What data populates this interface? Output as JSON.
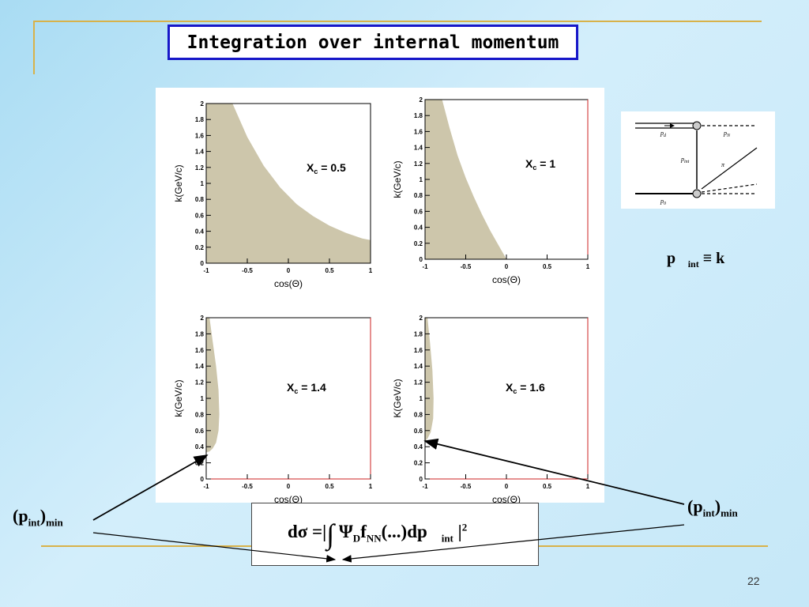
{
  "slide": {
    "title": "Integration over internal momentum",
    "page_number": "22",
    "formula": {
      "prefix": "dσ =|",
      "integral": "∫",
      "psi": "Ψ",
      "psi_sub": "D",
      "f": "f",
      "f_sub": "NN",
      "middle": "(...)d",
      "p": "p⃗",
      "p_sub": "int",
      "suffix": "|",
      "power": "2"
    },
    "pint_equation": {
      "p": "p⃗",
      "sub": "int",
      "rest": " ≡ k⃗"
    },
    "pmin_label": {
      "open": "(p",
      "sub": "int",
      "close": ")",
      "min": "min"
    },
    "diagram_labels": {
      "pd": "p",
      "pd_sub": "d",
      "pN": "p",
      "pN_sub": "N",
      "pint": "p",
      "pint_sub": "int",
      "pi": "π",
      "p0": "p",
      "p0_sub": "0"
    },
    "colors": {
      "fill": "#cdc6ab",
      "title_border": "#1717c8",
      "accent_line": "#d8b24a",
      "frame_right": "#cc2222"
    }
  },
  "chart_data": [
    {
      "type": "area",
      "annotation": "X",
      "annotation_sub": "c",
      "annotation_value": " = 0.5",
      "xlabel": "cos(Θ)",
      "ylabel": "k(GeV/c)",
      "xlim": [
        -1,
        1
      ],
      "ylim": [
        0,
        2
      ],
      "xticks": [
        "-1",
        "-0.5",
        "0",
        "0.5",
        "1"
      ],
      "yticks": [
        "0",
        "0.2",
        "0.4",
        "0.6",
        "0.8",
        "1",
        "1.2",
        "1.4",
        "1.6",
        "1.8",
        "2"
      ],
      "boundary": {
        "x": [
          -1,
          -0.68,
          -0.5,
          -0.3,
          -0.1,
          0.1,
          0.3,
          0.5,
          0.7,
          0.9,
          1
        ],
        "y": [
          2,
          2,
          1.58,
          1.22,
          0.95,
          0.74,
          0.59,
          0.47,
          0.38,
          0.31,
          0.29
        ]
      }
    },
    {
      "type": "area",
      "annotation": "X",
      "annotation_sub": "c",
      "annotation_value": " = 1",
      "xlabel": "cos(Θ)",
      "ylabel": "k(GeV/c)",
      "xlim": [
        -1,
        1
      ],
      "ylim": [
        0,
        2
      ],
      "xticks": [
        "-1",
        "-0.5",
        "0",
        "0.5",
        "1"
      ],
      "yticks": [
        "0",
        "0.2",
        "0.4",
        "0.6",
        "0.8",
        "1",
        "1.2",
        "1.4",
        "1.6",
        "1.8",
        "2"
      ],
      "boundary": {
        "x": [
          -1,
          -0.79,
          -0.7,
          -0.6,
          -0.5,
          -0.4,
          -0.3,
          -0.2,
          -0.1,
          -0.02,
          0
        ],
        "y": [
          2,
          2,
          1.65,
          1.3,
          1.02,
          0.78,
          0.56,
          0.36,
          0.18,
          0.04,
          0
        ]
      }
    },
    {
      "type": "area",
      "annotation": "X",
      "annotation_sub": "c",
      "annotation_value": " = 1.4",
      "xlabel": "cos(Θ)",
      "ylabel": "k(GeV/c)",
      "xlim": [
        -1,
        1
      ],
      "ylim": [
        0,
        2
      ],
      "xticks": [
        "-1",
        "-0.5",
        "0",
        "0.5",
        "1"
      ],
      "yticks": [
        "0",
        "0.2",
        "0.4",
        "0.6",
        "0.8",
        "1",
        "1.2",
        "1.4",
        "1.6",
        "1.8",
        "2"
      ],
      "boundary": {
        "x": [
          -1,
          -0.96,
          -0.92,
          -0.88,
          -0.85,
          -0.84,
          -0.85,
          -0.88,
          -0.92,
          -0.96,
          -1
        ],
        "y": [
          2,
          2,
          1.7,
          1.4,
          1.1,
          0.8,
          0.6,
          0.45,
          0.38,
          0.34,
          0.33
        ]
      }
    },
    {
      "type": "area",
      "annotation": "X",
      "annotation_sub": "c",
      "annotation_value": " = 1.6",
      "xlabel": "cos(Θ)",
      "ylabel": "K(GeV/c)",
      "xlim": [
        -1,
        1
      ],
      "ylim": [
        0,
        2
      ],
      "xticks": [
        "-1",
        "-0.5",
        "0",
        "0.5",
        "1"
      ],
      "yticks": [
        "0",
        "0.2",
        "0.4",
        "0.6",
        "0.8",
        "1",
        "1.2",
        "1.4",
        "1.6",
        "1.8",
        "2"
      ],
      "boundary": {
        "x": [
          -1,
          -0.97,
          -0.94,
          -0.91,
          -0.895,
          -0.9,
          -0.93,
          -0.97,
          -1
        ],
        "y": [
          2,
          2,
          1.7,
          1.35,
          1.0,
          0.75,
          0.58,
          0.5,
          0.47
        ]
      }
    }
  ]
}
